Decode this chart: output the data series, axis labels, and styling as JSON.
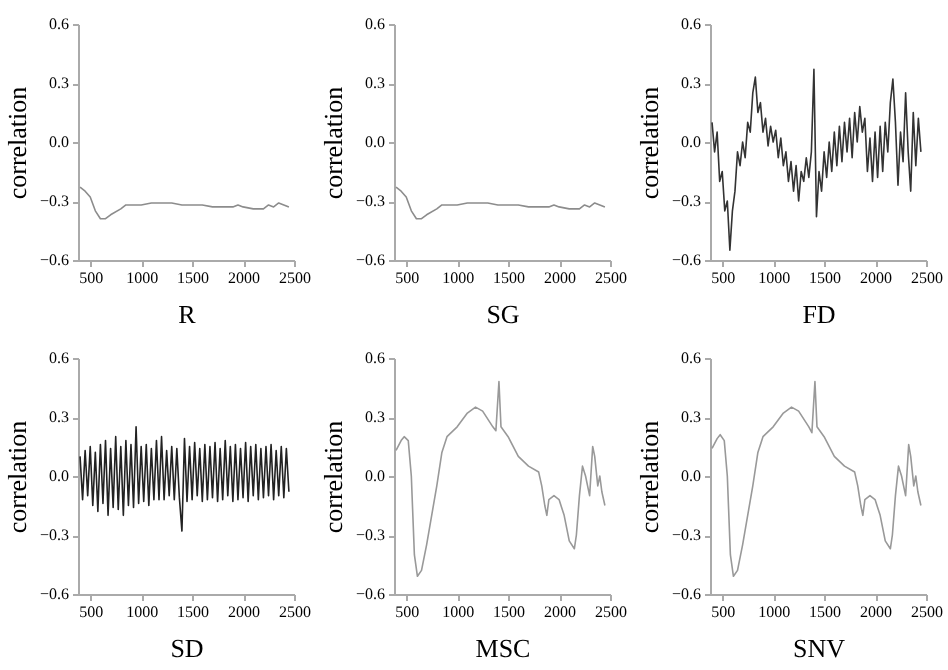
{
  "chart_data": [
    {
      "type": "line",
      "xlabel": "R",
      "ylabel": "correlation",
      "color": "#8c8c8c",
      "xlim": [
        380,
        2500
      ],
      "xticks": [
        500,
        1000,
        1500,
        2000,
        2500
      ],
      "ylim": [
        -0.6,
        0.6
      ],
      "yticks": [
        {
          "value": -0.6,
          "label": "−0.6"
        },
        {
          "value": -0.3,
          "label": "−0.3"
        },
        {
          "value": 0,
          "label": "0.0"
        },
        {
          "value": 0.3,
          "label": "0.3"
        },
        {
          "value": 0.6,
          "label": "0.6"
        }
      ],
      "x": [
        400,
        450,
        500,
        550,
        600,
        650,
        700,
        800,
        850,
        900,
        1000,
        1100,
        1200,
        1300,
        1400,
        1500,
        1600,
        1700,
        1800,
        1900,
        1950,
        2000,
        2100,
        2150,
        2200,
        2250,
        2300,
        2350,
        2400,
        2450
      ],
      "values": [
        -0.23,
        -0.25,
        -0.28,
        -0.35,
        -0.39,
        -0.39,
        -0.37,
        -0.34,
        -0.32,
        -0.32,
        -0.32,
        -0.31,
        -0.31,
        -0.31,
        -0.32,
        -0.32,
        -0.32,
        -0.33,
        -0.33,
        -0.33,
        -0.32,
        -0.33,
        -0.34,
        -0.34,
        -0.34,
        -0.32,
        -0.33,
        -0.31,
        -0.32,
        -0.33
      ]
    },
    {
      "type": "line",
      "xlabel": "SG",
      "ylabel": "correlation",
      "color": "#8c8c8c",
      "xlim": [
        380,
        2500
      ],
      "xticks": [
        500,
        1000,
        1500,
        2000,
        2500
      ],
      "ylim": [
        -0.6,
        0.6
      ],
      "yticks": [
        {
          "value": -0.6,
          "label": "−0.6"
        },
        {
          "value": -0.3,
          "label": "−0.3"
        },
        {
          "value": 0,
          "label": "0.0"
        },
        {
          "value": 0.3,
          "label": "0.3"
        },
        {
          "value": 0.6,
          "label": "0.6"
        }
      ],
      "x": [
        400,
        450,
        500,
        550,
        600,
        650,
        700,
        800,
        850,
        900,
        1000,
        1100,
        1200,
        1300,
        1400,
        1500,
        1600,
        1700,
        1800,
        1900,
        1950,
        2000,
        2100,
        2150,
        2200,
        2250,
        2300,
        2350,
        2400,
        2450
      ],
      "values": [
        -0.23,
        -0.25,
        -0.28,
        -0.35,
        -0.39,
        -0.39,
        -0.37,
        -0.34,
        -0.32,
        -0.32,
        -0.32,
        -0.31,
        -0.31,
        -0.31,
        -0.32,
        -0.32,
        -0.32,
        -0.33,
        -0.33,
        -0.33,
        -0.32,
        -0.33,
        -0.34,
        -0.34,
        -0.34,
        -0.32,
        -0.33,
        -0.31,
        -0.32,
        -0.33
      ]
    },
    {
      "type": "line",
      "xlabel": "FD",
      "ylabel": "correlation",
      "color": "#333333",
      "xlim": [
        380,
        2500
      ],
      "xticks": [
        500,
        1000,
        1500,
        2000,
        2500
      ],
      "ylim": [
        -0.6,
        0.6
      ],
      "yticks": [
        {
          "value": -0.6,
          "label": "−0.6"
        },
        {
          "value": -0.3,
          "label": "−0.3"
        },
        {
          "value": 0,
          "label": "0.0"
        },
        {
          "value": 0.3,
          "label": "0.3"
        },
        {
          "value": 0.6,
          "label": "0.6"
        }
      ],
      "x": [
        400,
        425,
        450,
        475,
        500,
        525,
        550,
        575,
        600,
        625,
        650,
        675,
        700,
        725,
        750,
        775,
        800,
        825,
        850,
        875,
        900,
        925,
        950,
        975,
        1000,
        1025,
        1050,
        1075,
        1100,
        1125,
        1150,
        1175,
        1200,
        1225,
        1250,
        1275,
        1300,
        1325,
        1350,
        1375,
        1400,
        1425,
        1450,
        1475,
        1500,
        1525,
        1550,
        1575,
        1600,
        1625,
        1650,
        1675,
        1700,
        1725,
        1750,
        1775,
        1800,
        1825,
        1850,
        1875,
        1900,
        1925,
        1950,
        1975,
        2000,
        2025,
        2050,
        2075,
        2100,
        2125,
        2150,
        2175,
        2200,
        2225,
        2250,
        2275,
        2300,
        2325,
        2350,
        2375,
        2400,
        2425,
        2450
      ],
      "values": [
        0.1,
        -0.05,
        0.05,
        -0.2,
        -0.15,
        -0.35,
        -0.3,
        -0.55,
        -0.35,
        -0.25,
        -0.05,
        -0.12,
        0.0,
        -0.08,
        0.1,
        0.05,
        0.25,
        0.33,
        0.15,
        0.2,
        0.05,
        0.12,
        -0.02,
        0.08,
        0.0,
        0.06,
        -0.08,
        0.02,
        -0.12,
        -0.05,
        -0.2,
        -0.1,
        -0.25,
        -0.12,
        -0.3,
        -0.15,
        -0.2,
        -0.08,
        -0.18,
        -0.05,
        0.37,
        -0.38,
        -0.15,
        -0.25,
        -0.05,
        -0.18,
        0.0,
        -0.15,
        0.05,
        -0.12,
        0.08,
        -0.1,
        0.1,
        -0.05,
        0.12,
        -0.08,
        0.15,
        0.0,
        0.18,
        0.05,
        0.12,
        -0.15,
        0.02,
        -0.2,
        0.05,
        -0.18,
        0.08,
        -0.15,
        0.1,
        -0.05,
        0.2,
        0.32,
        0.1,
        -0.22,
        0.05,
        -0.1,
        0.25,
        -0.05,
        -0.25,
        0.15,
        -0.12,
        0.12,
        -0.05
      ]
    },
    {
      "type": "line",
      "xlabel": "SD",
      "ylabel": "correlation",
      "color": "#222222",
      "xlim": [
        380,
        2500
      ],
      "xticks": [
        500,
        1000,
        1500,
        2000,
        2500
      ],
      "ylim": [
        -0.6,
        0.6
      ],
      "yticks": [
        {
          "value": -0.6,
          "label": "−0.6"
        },
        {
          "value": -0.3,
          "label": "−0.3"
        },
        {
          "value": 0,
          "label": "0.0"
        },
        {
          "value": 0.3,
          "label": "0.3"
        },
        {
          "value": 0.6,
          "label": "0.6"
        }
      ],
      "x": [
        400,
        425,
        450,
        475,
        500,
        525,
        550,
        575,
        600,
        625,
        650,
        675,
        700,
        725,
        750,
        775,
        800,
        825,
        850,
        875,
        900,
        925,
        950,
        975,
        1000,
        1025,
        1050,
        1075,
        1100,
        1125,
        1150,
        1175,
        1200,
        1225,
        1250,
        1275,
        1300,
        1325,
        1350,
        1375,
        1400,
        1425,
        1450,
        1475,
        1500,
        1525,
        1550,
        1575,
        1600,
        1625,
        1650,
        1675,
        1700,
        1725,
        1750,
        1775,
        1800,
        1825,
        1850,
        1875,
        1900,
        1925,
        1950,
        1975,
        2000,
        2025,
        2050,
        2075,
        2100,
        2125,
        2150,
        2175,
        2200,
        2225,
        2250,
        2275,
        2300,
        2325,
        2350,
        2375,
        2400,
        2425,
        2450
      ],
      "values": [
        0.1,
        -0.12,
        0.13,
        -0.1,
        0.15,
        -0.15,
        0.12,
        -0.18,
        0.16,
        -0.14,
        0.18,
        -0.2,
        0.14,
        -0.16,
        0.2,
        -0.17,
        0.15,
        -0.2,
        0.18,
        -0.15,
        0.16,
        -0.16,
        0.25,
        -0.14,
        0.15,
        -0.13,
        0.16,
        -0.15,
        0.14,
        -0.12,
        0.18,
        -0.12,
        0.2,
        -0.12,
        0.13,
        -0.1,
        0.15,
        -0.12,
        0.14,
        -0.11,
        -0.28,
        0.19,
        -0.13,
        0.15,
        -0.12,
        0.17,
        -0.1,
        0.14,
        -0.13,
        0.16,
        -0.12,
        0.15,
        -0.11,
        0.17,
        -0.13,
        0.14,
        -0.12,
        0.18,
        -0.1,
        0.15,
        -0.13,
        0.16,
        -0.12,
        0.14,
        -0.11,
        0.17,
        -0.13,
        0.15,
        -0.1,
        0.16,
        -0.12,
        0.14,
        -0.11,
        0.15,
        -0.1,
        0.16,
        -0.12,
        0.13,
        -0.1,
        0.15,
        -0.11,
        0.14,
        -0.08
      ]
    },
    {
      "type": "line",
      "xlabel": "MSC",
      "ylabel": "correlation",
      "color": "#999999",
      "xlim": [
        380,
        2500
      ],
      "xticks": [
        500,
        1000,
        1500,
        2000,
        2500
      ],
      "ylim": [
        -0.6,
        0.6
      ],
      "yticks": [
        {
          "value": -0.6,
          "label": "−0.6"
        },
        {
          "value": -0.3,
          "label": "−0.3"
        },
        {
          "value": 0,
          "label": "0.0"
        },
        {
          "value": 0.3,
          "label": "0.3"
        },
        {
          "value": 0.6,
          "label": "0.6"
        }
      ],
      "x": [
        400,
        450,
        480,
        520,
        550,
        580,
        610,
        650,
        700,
        800,
        850,
        900,
        1000,
        1100,
        1180,
        1250,
        1350,
        1380,
        1410,
        1430,
        1500,
        1600,
        1700,
        1800,
        1830,
        1860,
        1880,
        1900,
        1950,
        2000,
        2050,
        2100,
        2150,
        2170,
        2200,
        2230,
        2260,
        2280,
        2300,
        2330,
        2350,
        2380,
        2400,
        2420,
        2450
      ],
      "values": [
        0.13,
        0.18,
        0.2,
        0.18,
        0.0,
        -0.4,
        -0.51,
        -0.48,
        -0.35,
        -0.05,
        0.12,
        0.2,
        0.25,
        0.32,
        0.35,
        0.33,
        0.25,
        0.23,
        0.48,
        0.25,
        0.2,
        0.1,
        0.05,
        0.02,
        -0.05,
        -0.15,
        -0.2,
        -0.12,
        -0.1,
        -0.12,
        -0.2,
        -0.33,
        -0.37,
        -0.3,
        -0.1,
        0.05,
        0.0,
        -0.05,
        -0.1,
        0.15,
        0.1,
        -0.05,
        0.0,
        -0.08,
        -0.15
      ]
    },
    {
      "type": "line",
      "xlabel": "SNV",
      "ylabel": "correlation",
      "color": "#999999",
      "xlim": [
        380,
        2500
      ],
      "xticks": [
        500,
        1000,
        1500,
        2000,
        2500
      ],
      "ylim": [
        -0.6,
        0.6
      ],
      "yticks": [
        {
          "value": -0.6,
          "label": "−0.6"
        },
        {
          "value": -0.3,
          "label": "−0.3"
        },
        {
          "value": 0,
          "label": "0.0"
        },
        {
          "value": 0.3,
          "label": "0.3"
        },
        {
          "value": 0.6,
          "label": "0.6"
        }
      ],
      "x": [
        400,
        450,
        480,
        520,
        550,
        580,
        610,
        650,
        700,
        800,
        850,
        900,
        1000,
        1100,
        1180,
        1250,
        1350,
        1380,
        1410,
        1430,
        1500,
        1600,
        1700,
        1800,
        1830,
        1860,
        1880,
        1900,
        1950,
        2000,
        2050,
        2100,
        2150,
        2170,
        2200,
        2230,
        2260,
        2280,
        2300,
        2330,
        2350,
        2380,
        2400,
        2420,
        2450
      ],
      "values": [
        0.14,
        0.19,
        0.21,
        0.18,
        0.0,
        -0.4,
        -0.51,
        -0.48,
        -0.35,
        -0.05,
        0.12,
        0.2,
        0.25,
        0.32,
        0.35,
        0.33,
        0.25,
        0.22,
        0.48,
        0.25,
        0.2,
        0.1,
        0.05,
        0.02,
        -0.05,
        -0.15,
        -0.2,
        -0.12,
        -0.1,
        -0.12,
        -0.2,
        -0.33,
        -0.37,
        -0.3,
        -0.1,
        0.05,
        0.0,
        -0.05,
        -0.1,
        0.16,
        0.1,
        -0.05,
        0.0,
        -0.08,
        -0.15
      ]
    }
  ]
}
